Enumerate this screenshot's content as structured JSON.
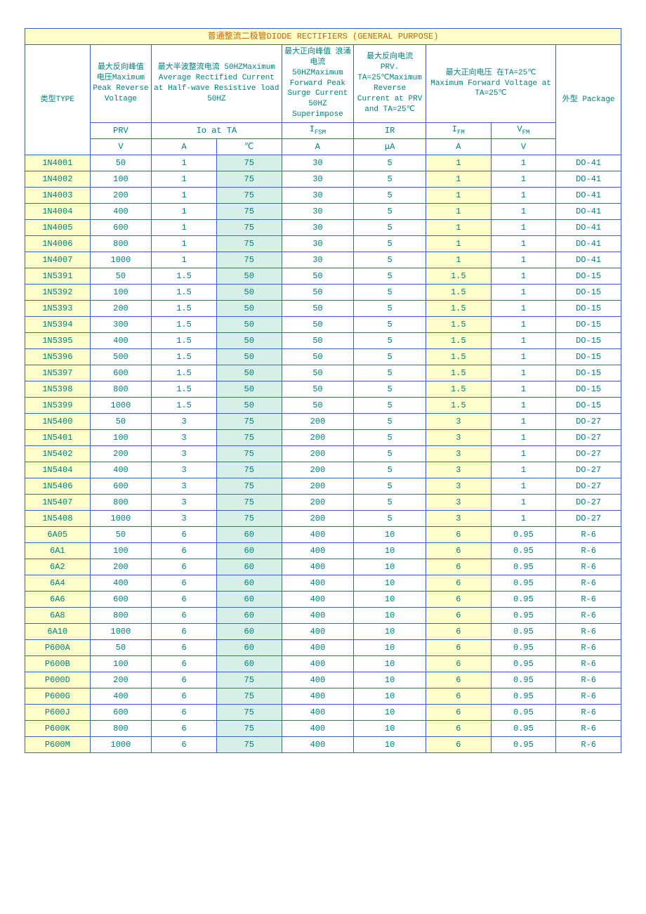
{
  "title_text": "普通整流二极管DIODE RECTIFIERS (GENERAL PURPOSE)",
  "colors": {
    "border": "#3366cc",
    "text": "#008080",
    "title_text": "#cc6600",
    "bg_yellow": "#ffffcc",
    "bg_teal": "#d6f0e8",
    "bg_white": "#ffffff"
  },
  "fonts": {
    "family": "SimSun / Courier New monospace",
    "size_body": 12,
    "size_header": 11
  },
  "headers": {
    "desc": {
      "type": "类型TYPE",
      "prv": "最大反向峰值 电压Maximum Peak Reverse Voltage",
      "io": "最大半波整流电流 50HZMaximum Average Rectified Current at Half-wave Resistive load 50HZ",
      "ifsm": "最大正向峰值\n浪涌电流 50HZMaximum Forward Peak Surge Current 50HZ Superimpose",
      "ir": "最大反向电流 PRV. TA=25℃Maximum Reverse Current at PRV and TA=25℃",
      "vf": "最大正向电压 在TA=25℃ Maximum Forward Voltage at TA=25℃",
      "pkg": "外型 Package"
    },
    "sym": {
      "prv": "PRV",
      "io": "Io at TA",
      "ifsm": "IFSM",
      "ir": "IR",
      "ifm": "IFM",
      "vfm": "VFM"
    },
    "unit": {
      "prv": "V",
      "io_a": "A",
      "io_c": "℃",
      "ifsm": "A",
      "ir": "μA",
      "ifm": "A",
      "vfm": "V"
    }
  },
  "rows": [
    {
      "type": "1N4001",
      "prv": "50",
      "ioA": "1",
      "ioC": "75",
      "ifsm": "30",
      "ir": "5",
      "ifm": "1",
      "vfm": "1",
      "pkg": "DO-41"
    },
    {
      "type": "1N4002",
      "prv": "100",
      "ioA": "1",
      "ioC": "75",
      "ifsm": "30",
      "ir": "5",
      "ifm": "1",
      "vfm": "1",
      "pkg": "DO-41"
    },
    {
      "type": "1N4003",
      "prv": "200",
      "ioA": "1",
      "ioC": "75",
      "ifsm": "30",
      "ir": "5",
      "ifm": "1",
      "vfm": "1",
      "pkg": "DO-41"
    },
    {
      "type": "1N4004",
      "prv": "400",
      "ioA": "1",
      "ioC": "75",
      "ifsm": "30",
      "ir": "5",
      "ifm": "1",
      "vfm": "1",
      "pkg": "DO-41"
    },
    {
      "type": "1N4005",
      "prv": "600",
      "ioA": "1",
      "ioC": "75",
      "ifsm": "30",
      "ir": "5",
      "ifm": "1",
      "vfm": "1",
      "pkg": "DO-41"
    },
    {
      "type": "1N4006",
      "prv": "800",
      "ioA": "1",
      "ioC": "75",
      "ifsm": "30",
      "ir": "5",
      "ifm": "1",
      "vfm": "1",
      "pkg": "DO-41"
    },
    {
      "type": "1N4007",
      "prv": "1000",
      "ioA": "1",
      "ioC": "75",
      "ifsm": "30",
      "ir": "5",
      "ifm": "1",
      "vfm": "1",
      "pkg": "DO-41"
    },
    {
      "type": "1N5391",
      "prv": "50",
      "ioA": "1.5",
      "ioC": "50",
      "ifsm": "50",
      "ir": "5",
      "ifm": "1.5",
      "vfm": "1",
      "pkg": "DO-15"
    },
    {
      "type": "1N5392",
      "prv": "100",
      "ioA": "1.5",
      "ioC": "50",
      "ifsm": "50",
      "ir": "5",
      "ifm": "1.5",
      "vfm": "1",
      "pkg": "DO-15"
    },
    {
      "type": "1N5393",
      "prv": "200",
      "ioA": "1.5",
      "ioC": "50",
      "ifsm": "50",
      "ir": "5",
      "ifm": "1.5",
      "vfm": "1",
      "pkg": "DO-15"
    },
    {
      "type": "1N5394",
      "prv": "300",
      "ioA": "1.5",
      "ioC": "50",
      "ifsm": "50",
      "ir": "5",
      "ifm": "1.5",
      "vfm": "1",
      "pkg": "DO-15"
    },
    {
      "type": "1N5395",
      "prv": "400",
      "ioA": "1.5",
      "ioC": "50",
      "ifsm": "50",
      "ir": "5",
      "ifm": "1.5",
      "vfm": "1",
      "pkg": "DO-15"
    },
    {
      "type": "1N5396",
      "prv": "500",
      "ioA": "1.5",
      "ioC": "50",
      "ifsm": "50",
      "ir": "5",
      "ifm": "1.5",
      "vfm": "1",
      "pkg": "DO-15"
    },
    {
      "type": "1N5397",
      "prv": "600",
      "ioA": "1.5",
      "ioC": "50",
      "ifsm": "50",
      "ir": "5",
      "ifm": "1.5",
      "vfm": "1",
      "pkg": "DO-15"
    },
    {
      "type": "1N5398",
      "prv": "800",
      "ioA": "1.5",
      "ioC": "50",
      "ifsm": "50",
      "ir": "5",
      "ifm": "1.5",
      "vfm": "1",
      "pkg": "DO-15"
    },
    {
      "type": "1N5399",
      "prv": "1000",
      "ioA": "1.5",
      "ioC": "50",
      "ifsm": "50",
      "ir": "5",
      "ifm": "1.5",
      "vfm": "1",
      "pkg": "DO-15"
    },
    {
      "type": "1N5400",
      "prv": "50",
      "ioA": "3",
      "ioC": "75",
      "ifsm": "200",
      "ir": "5",
      "ifm": "3",
      "vfm": "1",
      "pkg": "DO-27"
    },
    {
      "type": "1N5401",
      "prv": "100",
      "ioA": "3",
      "ioC": "75",
      "ifsm": "200",
      "ir": "5",
      "ifm": "3",
      "vfm": "1",
      "pkg": "DO-27"
    },
    {
      "type": "1N5402",
      "prv": "200",
      "ioA": "3",
      "ioC": "75",
      "ifsm": "200",
      "ir": "5",
      "ifm": "3",
      "vfm": "1",
      "pkg": "DO-27"
    },
    {
      "type": "1N5404",
      "prv": "400",
      "ioA": "3",
      "ioC": "75",
      "ifsm": "200",
      "ir": "5",
      "ifm": "3",
      "vfm": "1",
      "pkg": "DO-27"
    },
    {
      "type": "1N5406",
      "prv": "600",
      "ioA": "3",
      "ioC": "75",
      "ifsm": "200",
      "ir": "5",
      "ifm": "3",
      "vfm": "1",
      "pkg": "DO-27"
    },
    {
      "type": "1N5407",
      "prv": "800",
      "ioA": "3",
      "ioC": "75",
      "ifsm": "200",
      "ir": "5",
      "ifm": "3",
      "vfm": "1",
      "pkg": "DO-27"
    },
    {
      "type": "1N5408",
      "prv": "1000",
      "ioA": "3",
      "ioC": "75",
      "ifsm": "200",
      "ir": "5",
      "ifm": "3",
      "vfm": "1",
      "pkg": "DO-27"
    },
    {
      "type": "6A05",
      "prv": "50",
      "ioA": "6",
      "ioC": "60",
      "ifsm": "400",
      "ir": "10",
      "ifm": "6",
      "vfm": "0.95",
      "pkg": "R-6"
    },
    {
      "type": "6A1",
      "prv": "100",
      "ioA": "6",
      "ioC": "60",
      "ifsm": "400",
      "ir": "10",
      "ifm": "6",
      "vfm": "0.95",
      "pkg": "R-6"
    },
    {
      "type": "6A2",
      "prv": "200",
      "ioA": "6",
      "ioC": "60",
      "ifsm": "400",
      "ir": "10",
      "ifm": "6",
      "vfm": "0.95",
      "pkg": "R-6"
    },
    {
      "type": "6A4",
      "prv": "400",
      "ioA": "6",
      "ioC": "60",
      "ifsm": "400",
      "ir": "10",
      "ifm": "6",
      "vfm": "0.95",
      "pkg": "R-6"
    },
    {
      "type": "6A6",
      "prv": "600",
      "ioA": "6",
      "ioC": "60",
      "ifsm": "400",
      "ir": "10",
      "ifm": "6",
      "vfm": "0.95",
      "pkg": "R-6"
    },
    {
      "type": "6A8",
      "prv": "800",
      "ioA": "6",
      "ioC": "60",
      "ifsm": "400",
      "ir": "10",
      "ifm": "6",
      "vfm": "0.95",
      "pkg": "R-6"
    },
    {
      "type": "6A10",
      "prv": "1000",
      "ioA": "6",
      "ioC": "60",
      "ifsm": "400",
      "ir": "10",
      "ifm": "6",
      "vfm": "0.95",
      "pkg": "R-6"
    },
    {
      "type": "P600A",
      "prv": "50",
      "ioA": "6",
      "ioC": "60",
      "ifsm": "400",
      "ir": "10",
      "ifm": "6",
      "vfm": "0.95",
      "pkg": "R-6"
    },
    {
      "type": "P600B",
      "prv": "100",
      "ioA": "6",
      "ioC": "60",
      "ifsm": "400",
      "ir": "10",
      "ifm": "6",
      "vfm": "0.95",
      "pkg": "R-6"
    },
    {
      "type": "P600D",
      "prv": "200",
      "ioA": "6",
      "ioC": "75",
      "ifsm": "400",
      "ir": "10",
      "ifm": "6",
      "vfm": "0.95",
      "pkg": "R-6"
    },
    {
      "type": "P600G",
      "prv": "400",
      "ioA": "6",
      "ioC": "75",
      "ifsm": "400",
      "ir": "10",
      "ifm": "6",
      "vfm": "0.95",
      "pkg": "R-6"
    },
    {
      "type": "P600J",
      "prv": "600",
      "ioA": "6",
      "ioC": "75",
      "ifsm": "400",
      "ir": "10",
      "ifm": "6",
      "vfm": "0.95",
      "pkg": "R-6"
    },
    {
      "type": "P600K",
      "prv": "800",
      "ioA": "6",
      "ioC": "75",
      "ifsm": "400",
      "ir": "10",
      "ifm": "6",
      "vfm": "0.95",
      "pkg": "R-6"
    },
    {
      "type": "P600M",
      "prv": "1000",
      "ioA": "6",
      "ioC": "75",
      "ifsm": "400",
      "ir": "10",
      "ifm": "6",
      "vfm": "0.95",
      "pkg": "R-6"
    }
  ]
}
